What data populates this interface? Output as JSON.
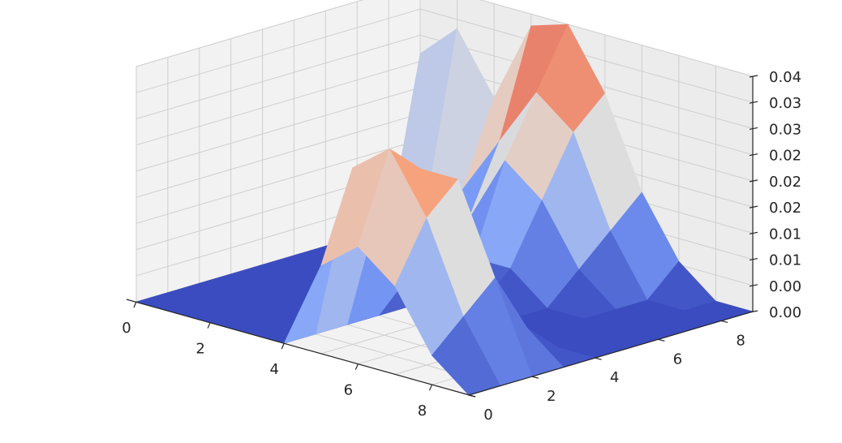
{
  "chart_data": {
    "type": "surface3d",
    "colormap": "coolwarm",
    "x": [
      0,
      1,
      2,
      3,
      4,
      5,
      6,
      7,
      8,
      9
    ],
    "y": [
      0,
      1,
      2,
      3,
      4,
      5,
      6,
      7,
      8,
      9
    ],
    "x_ticks": [
      "0",
      "2",
      "4",
      "6",
      "8"
    ],
    "y_ticks": [
      "0",
      "2",
      "4",
      "6",
      "8"
    ],
    "z_ticks": [
      "0.00",
      "0.00",
      "0.01",
      "0.01",
      "0.02",
      "0.02",
      "0.02",
      "0.03",
      "0.03",
      "0.04"
    ],
    "xlim": [
      0,
      9
    ],
    "ylim": [
      0,
      9
    ],
    "zlim": [
      0,
      0.04
    ],
    "grid": true,
    "z": [
      [
        0.0,
        0.0,
        0.0,
        0.0,
        0.0,
        0.0,
        0.0,
        0.0,
        0.0,
        0.028
      ],
      [
        0.0,
        0.0,
        0.0,
        0.0,
        0.0,
        0.0,
        0.0,
        0.0,
        0.005,
        0.034
      ],
      [
        0.0,
        0.0,
        0.0,
        0.0,
        0.0,
        0.0,
        0.0,
        0.0,
        0.01,
        0.024
      ],
      [
        0.0,
        0.0,
        0.0,
        0.0,
        0.0,
        0.0,
        0.0,
        0.008,
        0.02,
        0.038
      ],
      [
        0.0,
        0.0,
        0.0,
        0.0,
        0.0,
        0.0,
        0.005,
        0.02,
        0.03,
        0.04
      ],
      [
        0.015,
        0.03,
        0.025,
        0.01,
        0.0,
        0.0,
        0.005,
        0.015,
        0.025,
        0.03
      ],
      [
        0.02,
        0.035,
        0.03,
        0.015,
        0.0,
        0.0,
        0.0,
        0.005,
        0.01,
        0.015
      ],
      [
        0.015,
        0.025,
        0.03,
        0.01,
        0.0,
        0.0,
        0.0,
        0.0,
        0.0,
        0.005
      ],
      [
        0.005,
        0.01,
        0.015,
        0.005,
        0.0,
        0.0,
        0.0,
        0.0,
        0.0,
        0.0
      ],
      [
        0.0,
        0.0,
        0.0,
        0.0,
        0.0,
        0.0,
        0.0,
        0.0,
        0.0,
        0.0
      ]
    ]
  }
}
